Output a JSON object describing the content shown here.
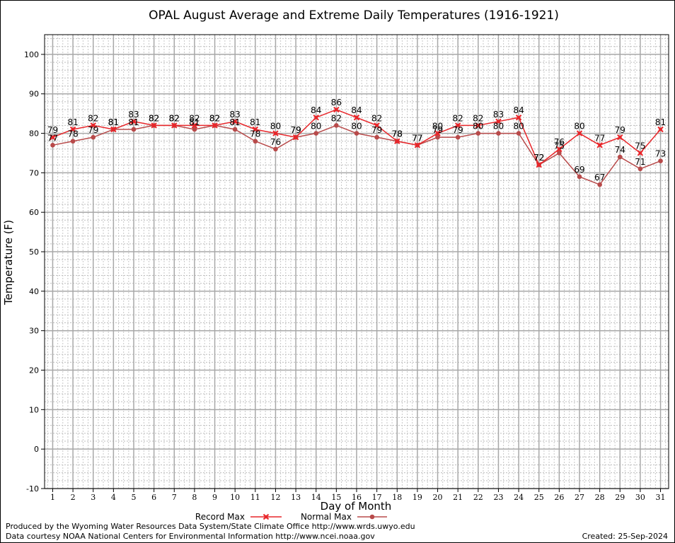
{
  "chart_data": {
    "type": "line",
    "title": "OPAL August Average and Extreme Daily Temperatures (1916-1921)",
    "xlabel": "Day of Month",
    "ylabel": "Temperature (F)",
    "xlim": [
      0.6,
      31.4
    ],
    "ylim": [
      -10,
      105
    ],
    "y_ticks": [
      -10,
      0,
      10,
      20,
      30,
      40,
      50,
      60,
      70,
      80,
      90,
      100
    ],
    "x": [
      1,
      2,
      3,
      4,
      5,
      6,
      7,
      8,
      9,
      10,
      11,
      12,
      13,
      14,
      15,
      16,
      17,
      18,
      19,
      20,
      21,
      22,
      23,
      24,
      25,
      26,
      27,
      28,
      29,
      30,
      31
    ],
    "grid": true,
    "legend_position": "bottom-center",
    "series": [
      {
        "name": "Record Max",
        "color": "#e8262a",
        "values": [
          79,
          81,
          82,
          81,
          83,
          82,
          82,
          82,
          82,
          83,
          81,
          80,
          79,
          84,
          86,
          84,
          82,
          78,
          77,
          80,
          82,
          82,
          83,
          84,
          72,
          76,
          80,
          77,
          79,
          75,
          81
        ]
      },
      {
        "name": "Normal Max",
        "color": "#b84a4a",
        "values": [
          77,
          78,
          79,
          81,
          81,
          82,
          82,
          81,
          82,
          81,
          78,
          76,
          79,
          80,
          82,
          80,
          79,
          78,
          77,
          79,
          79,
          80,
          80,
          80,
          72,
          75,
          69,
          67,
          74,
          71,
          73
        ]
      }
    ]
  },
  "footer": {
    "produced_by": "Produced by the Wyoming Water Resources Data System/State Climate Office http://www.wrds.uwyo.edu",
    "data_courtesy": "Data courtesy NOAA National Centers for Environmental Information http://www.ncei.noaa.gov",
    "created": "Created:  25-Sep-2024"
  }
}
